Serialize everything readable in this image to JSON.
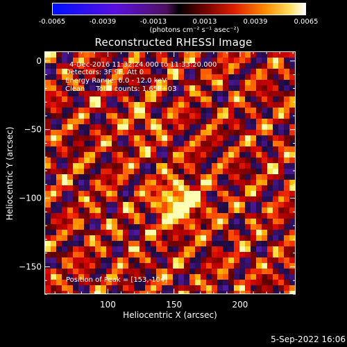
{
  "colorbar": {
    "ticks": [
      "-0.0065",
      "-0.0039",
      "-0.0013",
      "0.0013",
      "0.0039",
      "0.0065"
    ],
    "units": "(photons cm⁻² s⁻¹ asec⁻²)",
    "range": [
      -0.0065,
      0.0065
    ],
    "colormap": "hot with blue-violet negatives"
  },
  "annotation": {
    "time": "4-Dec-2016 11:32:24.000 to 11:33:20.000",
    "detectors": "Detectors: 3F 9F, Att 0",
    "energy": "Energy Range: 6.0 - 12.0 keV",
    "method": "Clean     Total counts: 1.65E+03",
    "peak": "Position of Peak = [153,-104]"
  },
  "timestamp": "5-Sep-2022 16:06",
  "colors": {
    "background": "#000000",
    "axes": "#ffffff"
  },
  "chart_data": {
    "type": "heatmap",
    "title": "Reconstructed RHESSI Image",
    "xlabel": "Heliocentric X (arcsec)",
    "ylabel": "Heliocentric Y (arcsec)",
    "xlim": [
      52,
      242
    ],
    "ylim": [
      -170,
      7
    ],
    "xticks": [
      100,
      150,
      200
    ],
    "yticks": [
      0,
      -50,
      -100,
      -150
    ],
    "peak_position": [
      153,
      -104
    ],
    "peak_intensity": 0.0065,
    "grid": false
  }
}
